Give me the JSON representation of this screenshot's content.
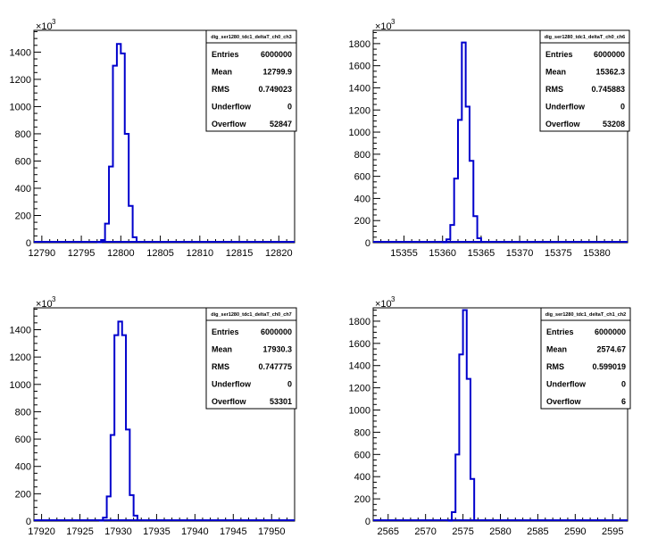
{
  "chart_data": [
    {
      "type": "bar",
      "title": "dig_ser1280_tdc1_deltaT_ch0_ch3",
      "y_multiplier": "×10",
      "y_multiplier_exp": "3",
      "xlim": [
        12789,
        12822
      ],
      "ylim": [
        0,
        1560
      ],
      "xticks": [
        12790,
        12795,
        12800,
        12805,
        12810,
        12815,
        12820
      ],
      "yticks": [
        0,
        200,
        400,
        600,
        800,
        1000,
        1200,
        1400
      ],
      "bin_edges": [
        12797,
        12797.5,
        12798,
        12798.5,
        12799,
        12799.5,
        12800,
        12800.5,
        12801,
        12801.5,
        12802
      ],
      "values": [
        3,
        20,
        140,
        560,
        1300,
        1460,
        1390,
        800,
        270,
        40
      ],
      "stats": [
        {
          "label": "Entries",
          "value": "6000000"
        },
        {
          "label": "Mean",
          "value": "12799.9"
        },
        {
          "label": "RMS",
          "value": "0.749023"
        },
        {
          "label": "Underflow",
          "value": "0"
        },
        {
          "label": "Overflow",
          "value": "52847"
        }
      ]
    },
    {
      "type": "bar",
      "title": "dig_ser1280_tdc1_deltaT_ch0_ch6",
      "y_multiplier": "×10",
      "y_multiplier_exp": "3",
      "xlim": [
        15351,
        15384
      ],
      "ylim": [
        0,
        1920
      ],
      "xticks": [
        15355,
        15360,
        15365,
        15370,
        15375,
        15380
      ],
      "yticks": [
        0,
        200,
        400,
        600,
        800,
        1000,
        1200,
        1400,
        1600,
        1800
      ],
      "bin_edges": [
        15360,
        15360.5,
        15361,
        15361.5,
        15362,
        15362.5,
        15363,
        15363.5,
        15364,
        15364.5,
        15365
      ],
      "values": [
        3,
        30,
        160,
        580,
        1110,
        1810,
        1230,
        740,
        240,
        40
      ],
      "stats": [
        {
          "label": "Entries",
          "value": "6000000"
        },
        {
          "label": "Mean",
          "value": "15362.3"
        },
        {
          "label": "RMS",
          "value": "0.745883"
        },
        {
          "label": "Underflow",
          "value": "0"
        },
        {
          "label": "Overflow",
          "value": "53208"
        }
      ]
    },
    {
      "type": "bar",
      "title": "dig_ser1280_tdc1_deltaT_ch0_ch7",
      "y_multiplier": "×10",
      "y_multiplier_exp": "3",
      "xlim": [
        17919,
        17953
      ],
      "ylim": [
        0,
        1560
      ],
      "xticks": [
        17920,
        17925,
        17930,
        17935,
        17940,
        17945,
        17950
      ],
      "yticks": [
        0,
        200,
        400,
        600,
        800,
        1000,
        1200,
        1400
      ],
      "bin_edges": [
        17927.5,
        17928,
        17928.5,
        17929,
        17929.5,
        17930,
        17930.5,
        17931,
        17931.5,
        17932,
        17932.5
      ],
      "values": [
        3,
        25,
        180,
        630,
        1360,
        1460,
        1360,
        670,
        190,
        40
      ],
      "stats": [
        {
          "label": "Entries",
          "value": "6000000"
        },
        {
          "label": "Mean",
          "value": "17930.3"
        },
        {
          "label": "RMS",
          "value": "0.747775"
        },
        {
          "label": "Underflow",
          "value": "0"
        },
        {
          "label": "Overflow",
          "value": "53301"
        }
      ]
    },
    {
      "type": "bar",
      "title": "dig_ser1280_tdc1_deltaT_ch1_ch2",
      "y_multiplier": "×10",
      "y_multiplier_exp": "3",
      "xlim": [
        2563,
        2597
      ],
      "ylim": [
        0,
        1920
      ],
      "xticks": [
        2565,
        2570,
        2575,
        2580,
        2585,
        2590,
        2595
      ],
      "yticks": [
        0,
        200,
        400,
        600,
        800,
        1000,
        1200,
        1400,
        1600,
        1800
      ],
      "bin_edges": [
        2573,
        2573.5,
        2574,
        2574.5,
        2575,
        2575.5,
        2576,
        2576.5
      ],
      "values": [
        3,
        80,
        600,
        1500,
        1900,
        1280,
        380
      ],
      "stats": [
        {
          "label": "Entries",
          "value": "6000000"
        },
        {
          "label": "Mean",
          "value": "2574.67"
        },
        {
          "label": "RMS",
          "value": "0.599019"
        },
        {
          "label": "Underflow",
          "value": "0"
        },
        {
          "label": "Overflow",
          "value": "6"
        }
      ]
    }
  ]
}
